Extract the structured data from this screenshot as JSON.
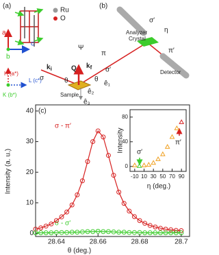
{
  "diagram": {
    "panel_a": {
      "label": "(a)",
      "legend": [
        "Ru",
        "O"
      ],
      "axes": [
        "a",
        "b",
        "c"
      ],
      "reciprocal": [
        "H (a*)",
        "L (c*)",
        "K (b*)"
      ]
    },
    "panel_b": {
      "label": "(b)",
      "analyzer": "Analyzer",
      "crystal": "Crystal",
      "detector": "Detector",
      "sample": "Sample",
      "labels": [
        "σ′",
        "η",
        "π′",
        "π",
        "σ′",
        "Ψ",
        "Q",
        "σ",
        "θ",
        "θ",
        "ê₁",
        "ê₂",
        "ê₃"
      ],
      "ki": {
        "text": "k",
        "sub": "i"
      },
      "kf": {
        "text": "k",
        "sub": "f"
      }
    }
  },
  "chart_data": [
    {
      "type": "line",
      "label": "(c)",
      "xlabel": "θ (deg.)",
      "ylabel": "Intensity (a. u.)",
      "x": [
        28.63,
        28.6325,
        28.635,
        28.6375,
        28.64,
        28.6425,
        28.645,
        28.6475,
        28.65,
        28.6525,
        28.655,
        28.6575,
        28.66,
        28.6625,
        28.665,
        28.6675,
        28.67,
        28.6725,
        28.675,
        28.6775,
        28.68,
        28.6825,
        28.685,
        28.6875,
        28.69,
        28.6925,
        28.695,
        28.6975,
        28.7
      ],
      "series": [
        {
          "name": "σ - π′",
          "color": "#d62020",
          "values": [
            1.4,
            1.8,
            2.4,
            3.1,
            4.2,
            5.4,
            7.0,
            9.3,
            12.6,
            17.2,
            23.5,
            30.0,
            33.5,
            31.5,
            25.5,
            19.0,
            13.5,
            9.8,
            7.3,
            5.5,
            4.2,
            3.3,
            2.6,
            2.1,
            1.7,
            1.4,
            1.2,
            1.0,
            0.9
          ]
        },
        {
          "name": "σ - σ′",
          "color": "#3ccc2c",
          "values": [
            0.2,
            0.2,
            0.2,
            0.2,
            0.3,
            0.3,
            0.3,
            0.4,
            0.4,
            0.5,
            0.6,
            0.6,
            0.7,
            0.6,
            0.6,
            0.5,
            0.4,
            0.4,
            0.3,
            0.3,
            0.3,
            0.2,
            0.2,
            0.2,
            0.2,
            0.2,
            0.2,
            0.2,
            0.2
          ]
        }
      ],
      "xlim": [
        28.63,
        28.704
      ],
      "xticks": [
        28.64,
        28.66,
        28.68,
        28.7
      ],
      "ylim": [
        -1,
        42
      ],
      "yticks": [
        0,
        10,
        20,
        30,
        40
      ]
    },
    {
      "type": "scatter",
      "xlabel": "η (deg.)",
      "ylabel": "Intensity",
      "x": [
        -10,
        0,
        10,
        20,
        30,
        40,
        50,
        60,
        70,
        80,
        90
      ],
      "values": [
        2,
        1,
        2,
        3,
        6,
        12,
        20,
        32,
        48,
        62,
        72
      ],
      "colors": [
        "#f0a020",
        "#3ccc2c",
        "#f0a020",
        "#f0a020",
        "#f0a020",
        "#f0a020",
        "#f0a020",
        "#f0a020",
        "#f0a020",
        "#f0a020",
        "#d62020"
      ],
      "annotations": [
        "σ′",
        "π′"
      ],
      "xlim": [
        -20,
        100
      ],
      "xticks": [
        -10,
        10,
        30,
        50,
        70,
        90
      ],
      "ylim": [
        -8,
        92
      ],
      "yticks": [
        0,
        40,
        80
      ]
    }
  ]
}
